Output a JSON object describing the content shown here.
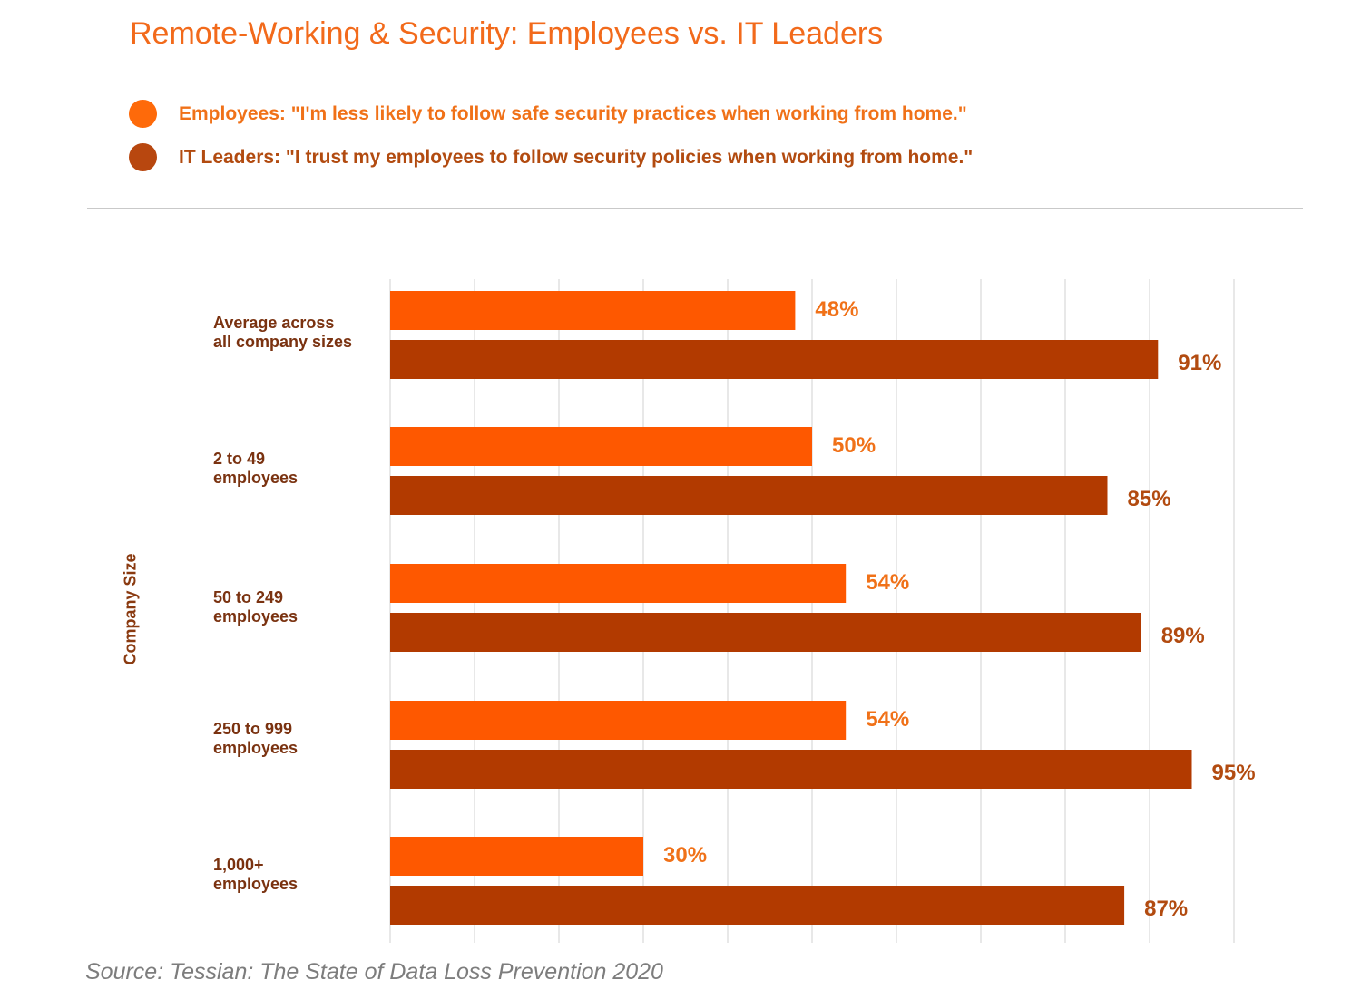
{
  "title": "Remote-Working & Security: Employees vs. IT Leaders",
  "source": "Source: Tessian: The State of Data Loss Prevention 2020",
  "colors": {
    "employees": "#fe5800",
    "it_leaders": "#b23a00",
    "employees_text": "#f07118",
    "it_leaders_text": "#b24b10",
    "grid": "#e8e8e8"
  },
  "chart_data": {
    "type": "bar",
    "orientation": "horizontal",
    "title": "Remote-Working & Security: Employees vs. IT Leaders",
    "ylabel": "Company Size",
    "xlabel": "",
    "xlim": [
      0,
      100
    ],
    "grid": true,
    "legend_position": "top-left",
    "categories": [
      "Average across\nall company sizes",
      "2 to 49\nemployees",
      "50 to 249\nemployees",
      "250 to 999\nemployees",
      "1,000+\nemployees"
    ],
    "series": [
      {
        "name": "Employees: \"I'm less likely to follow safe security practices when working from home.\"",
        "values": [
          48,
          50,
          54,
          54,
          30
        ],
        "labels": [
          "48%",
          "50%",
          "54%",
          "54%",
          "30%"
        ]
      },
      {
        "name": "IT Leaders: \"I trust my employees to follow security policies when working from home.\"",
        "values": [
          91,
          85,
          89,
          95,
          87
        ],
        "labels": [
          "91%",
          "85%",
          "89%",
          "95%",
          "87%"
        ]
      }
    ]
  }
}
